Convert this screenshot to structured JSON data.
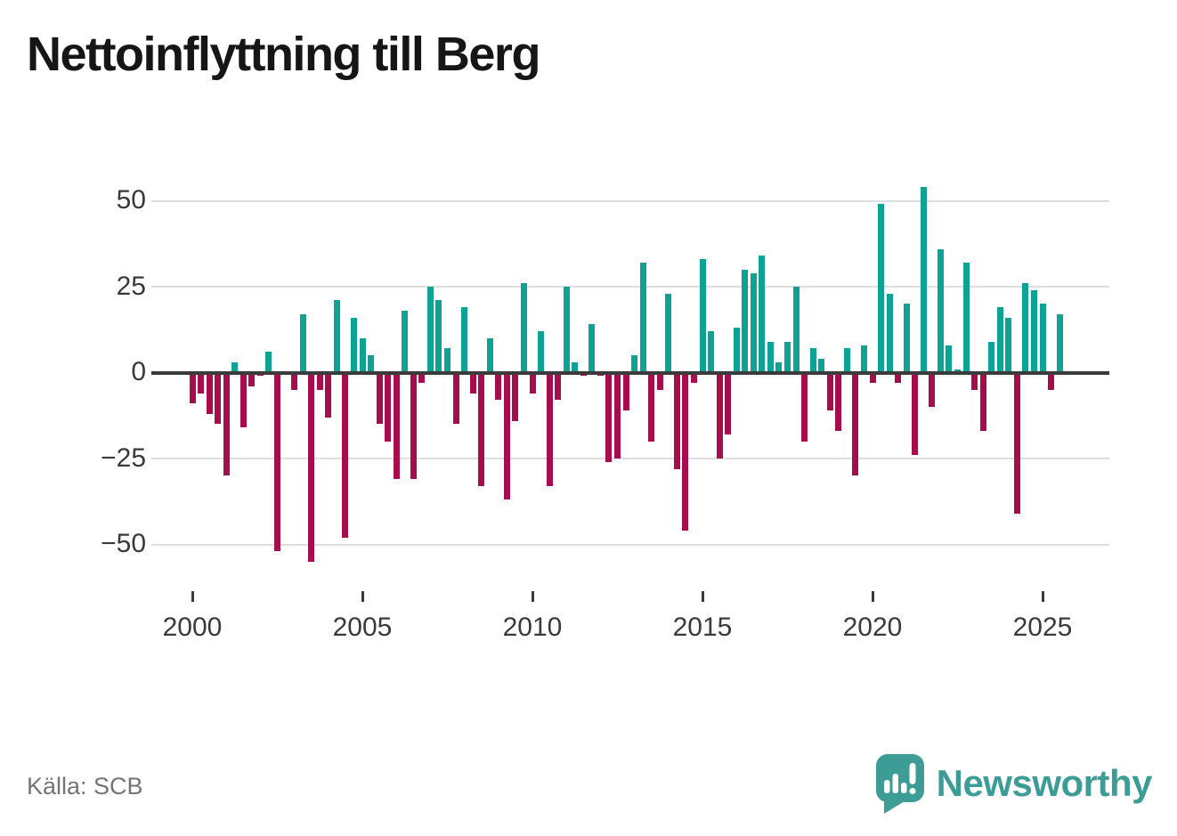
{
  "title": "Nettoinflyttning till Berg",
  "source": "Källa: SCB",
  "branding": {
    "name": "Newsworthy",
    "icon": "newsworthy-speech-bubble-bar-chart-icon"
  },
  "colors": {
    "positive": "#0DA293",
    "negative": "#A50D4D",
    "axis": "#3B3B3B",
    "grid": "#DEDEDE",
    "tick_text": "#3A3A3A",
    "title_text": "#161616",
    "source_text": "#757575",
    "brand": "#3D9C96"
  },
  "chart_data": {
    "type": "bar",
    "title": "Nettoinflyttning till Berg",
    "xlabel": "",
    "ylabel": "",
    "frequency": "quarterly",
    "grid": "horizontal-only",
    "ylim": [
      -60,
      60
    ],
    "y_ticks": [
      {
        "value": 50,
        "label": "50"
      },
      {
        "value": 25,
        "label": "25"
      },
      {
        "value": 0,
        "label": "0"
      },
      {
        "value": -25,
        "label": "−25"
      },
      {
        "value": -50,
        "label": "−50"
      }
    ],
    "x_ticks": [
      {
        "label": "2000",
        "quarter_index": 0
      },
      {
        "label": "2005",
        "quarter_index": 20
      },
      {
        "label": "2010",
        "quarter_index": 40
      },
      {
        "label": "2015",
        "quarter_index": 60
      },
      {
        "label": "2020",
        "quarter_index": 80
      },
      {
        "label": "2025",
        "quarter_index": 100
      }
    ],
    "quarters": [
      "2000 Q1",
      "2000 Q2",
      "2000 Q3",
      "2000 Q4",
      "2001 Q1",
      "2001 Q2",
      "2001 Q3",
      "2001 Q4",
      "2002 Q1",
      "2002 Q2",
      "2002 Q3",
      "2002 Q4",
      "2003 Q1",
      "2003 Q2",
      "2003 Q3",
      "2003 Q4",
      "2004 Q1",
      "2004 Q2",
      "2004 Q3",
      "2004 Q4",
      "2005 Q1",
      "2005 Q2",
      "2005 Q3",
      "2005 Q4",
      "2006 Q1",
      "2006 Q2",
      "2006 Q3",
      "2006 Q4",
      "2007 Q1",
      "2007 Q2",
      "2007 Q3",
      "2007 Q4",
      "2008 Q1",
      "2008 Q2",
      "2008 Q3",
      "2008 Q4",
      "2009 Q1",
      "2009 Q2",
      "2009 Q3",
      "2009 Q4",
      "2010 Q1",
      "2010 Q2",
      "2010 Q3",
      "2010 Q4",
      "2011 Q1",
      "2011 Q2",
      "2011 Q3",
      "2011 Q4",
      "2012 Q1",
      "2012 Q2",
      "2012 Q3",
      "2012 Q4",
      "2013 Q1",
      "2013 Q2",
      "2013 Q3",
      "2013 Q4",
      "2014 Q1",
      "2014 Q2",
      "2014 Q3",
      "2014 Q4",
      "2015 Q1",
      "2015 Q2",
      "2015 Q3",
      "2015 Q4",
      "2016 Q1",
      "2016 Q2",
      "2016 Q3",
      "2016 Q4",
      "2017 Q1",
      "2017 Q2",
      "2017 Q3",
      "2017 Q4",
      "2018 Q1",
      "2018 Q2",
      "2018 Q3",
      "2018 Q4",
      "2019 Q1",
      "2019 Q2",
      "2019 Q3",
      "2019 Q4",
      "2020 Q1",
      "2020 Q2",
      "2020 Q3",
      "2020 Q4",
      "2021 Q1",
      "2021 Q2",
      "2021 Q3",
      "2021 Q4",
      "2022 Q1",
      "2022 Q2",
      "2022 Q3",
      "2022 Q4",
      "2023 Q1",
      "2023 Q2",
      "2023 Q3",
      "2023 Q4",
      "2024 Q1",
      "2024 Q2",
      "2024 Q3",
      "2024 Q4",
      "2025 Q1",
      "2025 Q2",
      "2025 Q3"
    ],
    "values": [
      -9,
      -6,
      -12,
      -15,
      -30,
      3,
      -16,
      -4,
      -1,
      6,
      -52,
      0,
      -5,
      17,
      -55,
      -5,
      -13,
      21,
      -48,
      16,
      10,
      5,
      -15,
      -20,
      -31,
      18,
      -31,
      -3,
      25,
      21,
      7,
      -15,
      19,
      -6,
      -33,
      10,
      -8,
      -37,
      -14,
      26,
      -6,
      12,
      -33,
      -8,
      25,
      3,
      -1,
      14,
      -1,
      -26,
      -25,
      -11,
      5,
      32,
      -20,
      -5,
      23,
      -28,
      -46,
      -3,
      33,
      12,
      -25,
      -18,
      13,
      30,
      29,
      34,
      9,
      3,
      9,
      25,
      -20,
      7,
      4,
      -11,
      -17,
      7,
      -30,
      8,
      -3,
      49,
      23,
      -3,
      20,
      -24,
      54,
      -10,
      36,
      8,
      1,
      32,
      -5,
      -17,
      9,
      19,
      16,
      -41,
      26,
      24,
      20,
      -5,
      17
    ]
  }
}
